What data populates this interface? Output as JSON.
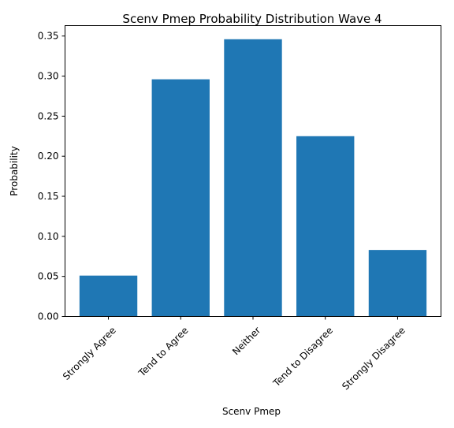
{
  "chart_data": {
    "type": "bar",
    "title": "Scenv Pmep Probability Distribution Wave 4",
    "xlabel": "Scenv Pmep",
    "ylabel": "Probability",
    "categories": [
      "Strongly Agree",
      "Tend to Agree",
      "Neither",
      "Tend to Disagree",
      "Strongly Disagree"
    ],
    "values": [
      0.051,
      0.296,
      0.346,
      0.225,
      0.083
    ],
    "ylim": [
      0,
      0.363
    ],
    "yticks": [
      "0.00",
      "0.05",
      "0.10",
      "0.15",
      "0.20",
      "0.25",
      "0.30",
      "0.35"
    ],
    "bar_color": "#1f77b4",
    "grid": false,
    "legend": "none",
    "xtick_rotation": "45 degrees"
  }
}
